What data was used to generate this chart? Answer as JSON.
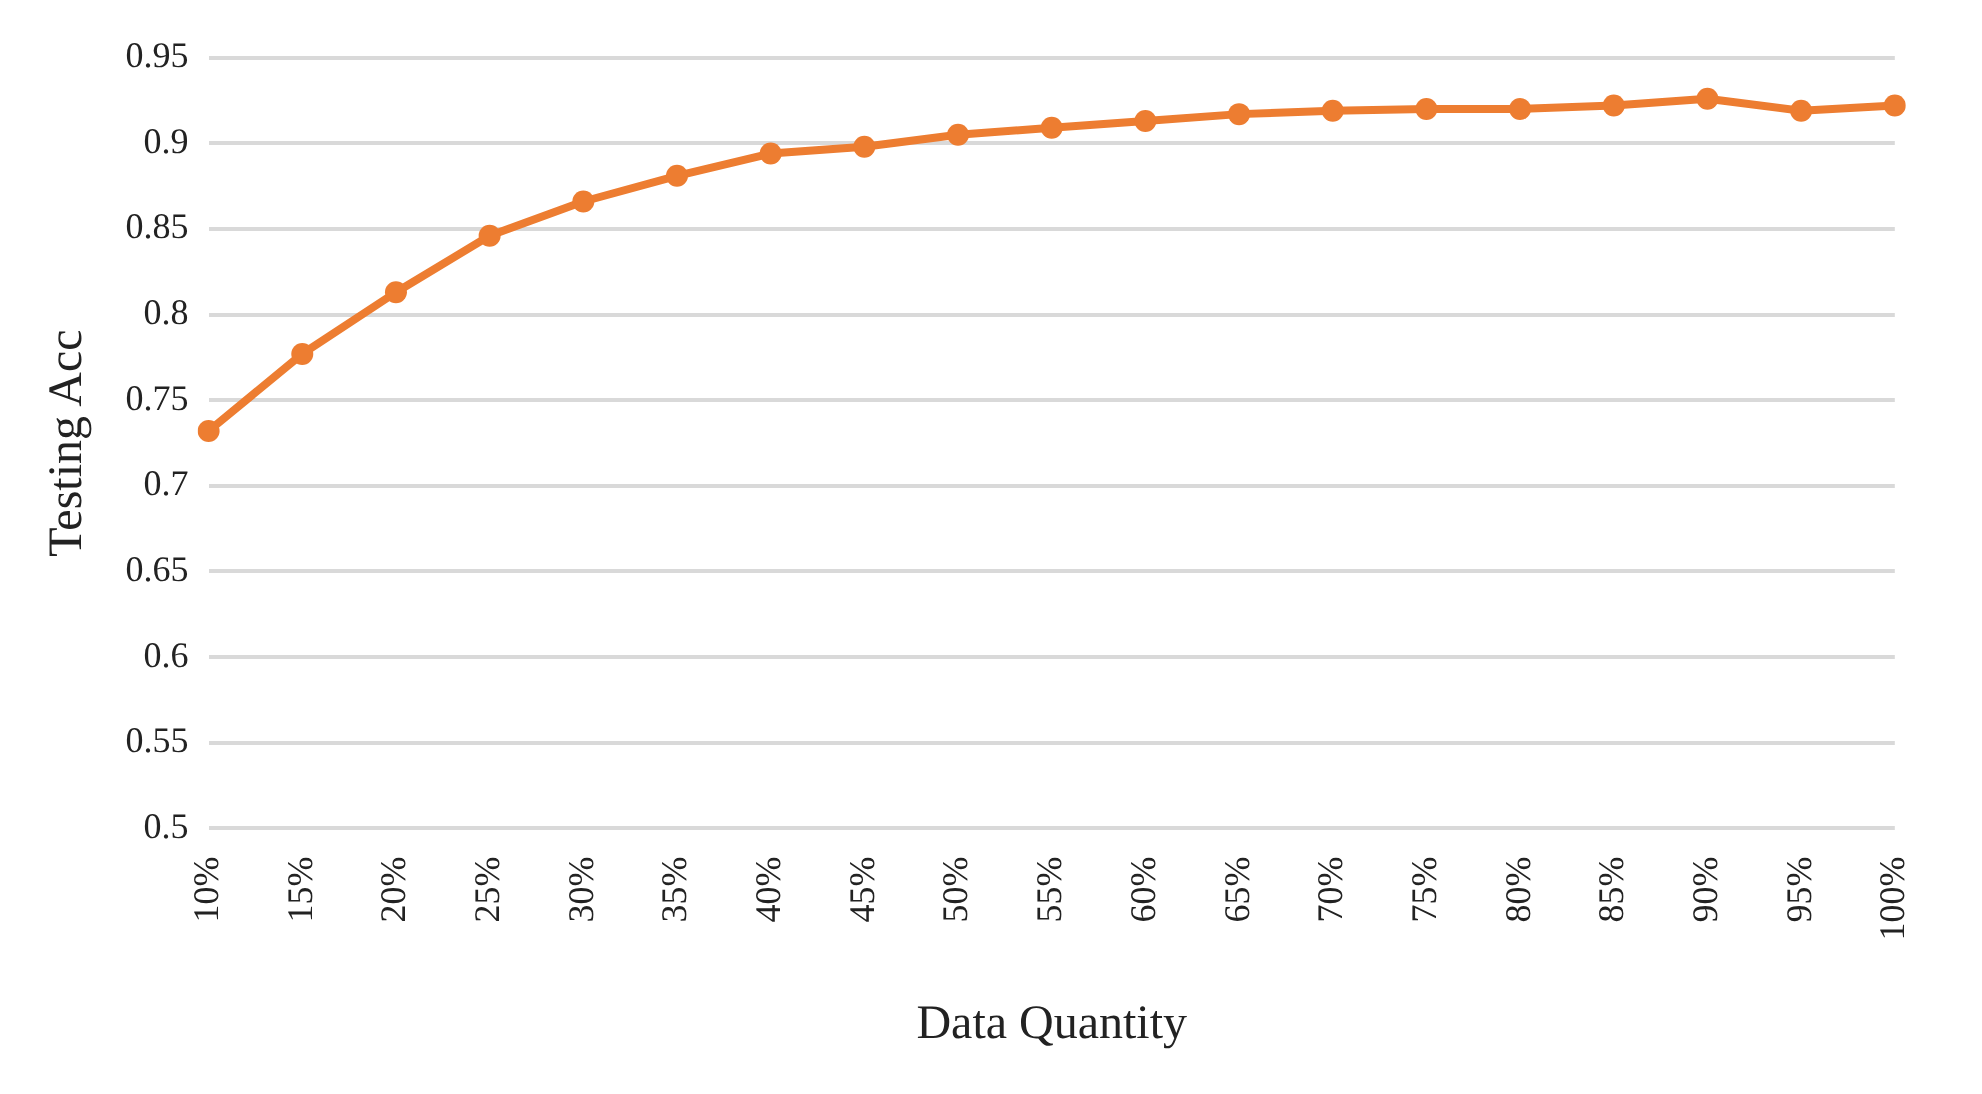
{
  "chart_data": {
    "type": "line",
    "xlabel": "Data Quantity",
    "ylabel": "Testing Acc",
    "categories": [
      "10%",
      "15%",
      "20%",
      "25%",
      "30%",
      "35%",
      "40%",
      "45%",
      "50%",
      "55%",
      "60%",
      "65%",
      "70%",
      "75%",
      "80%",
      "85%",
      "90%",
      "95%",
      "100%"
    ],
    "series": [
      {
        "color": "#ed7d31",
        "values": [
          0.732,
          0.777,
          0.813,
          0.846,
          0.866,
          0.881,
          0.894,
          0.898,
          0.905,
          0.909,
          0.913,
          0.917,
          0.919,
          0.92,
          0.92,
          0.922,
          0.926,
          0.919,
          0.922
        ]
      }
    ],
    "ylim": [
      0.5,
      0.95
    ],
    "yticks": [
      0.5,
      0.55,
      0.6,
      0.65,
      0.7,
      0.75,
      0.8,
      0.85,
      0.9,
      0.95
    ],
    "grid": "y",
    "legend": false,
    "marker": "circle",
    "line_style": "solid"
  }
}
